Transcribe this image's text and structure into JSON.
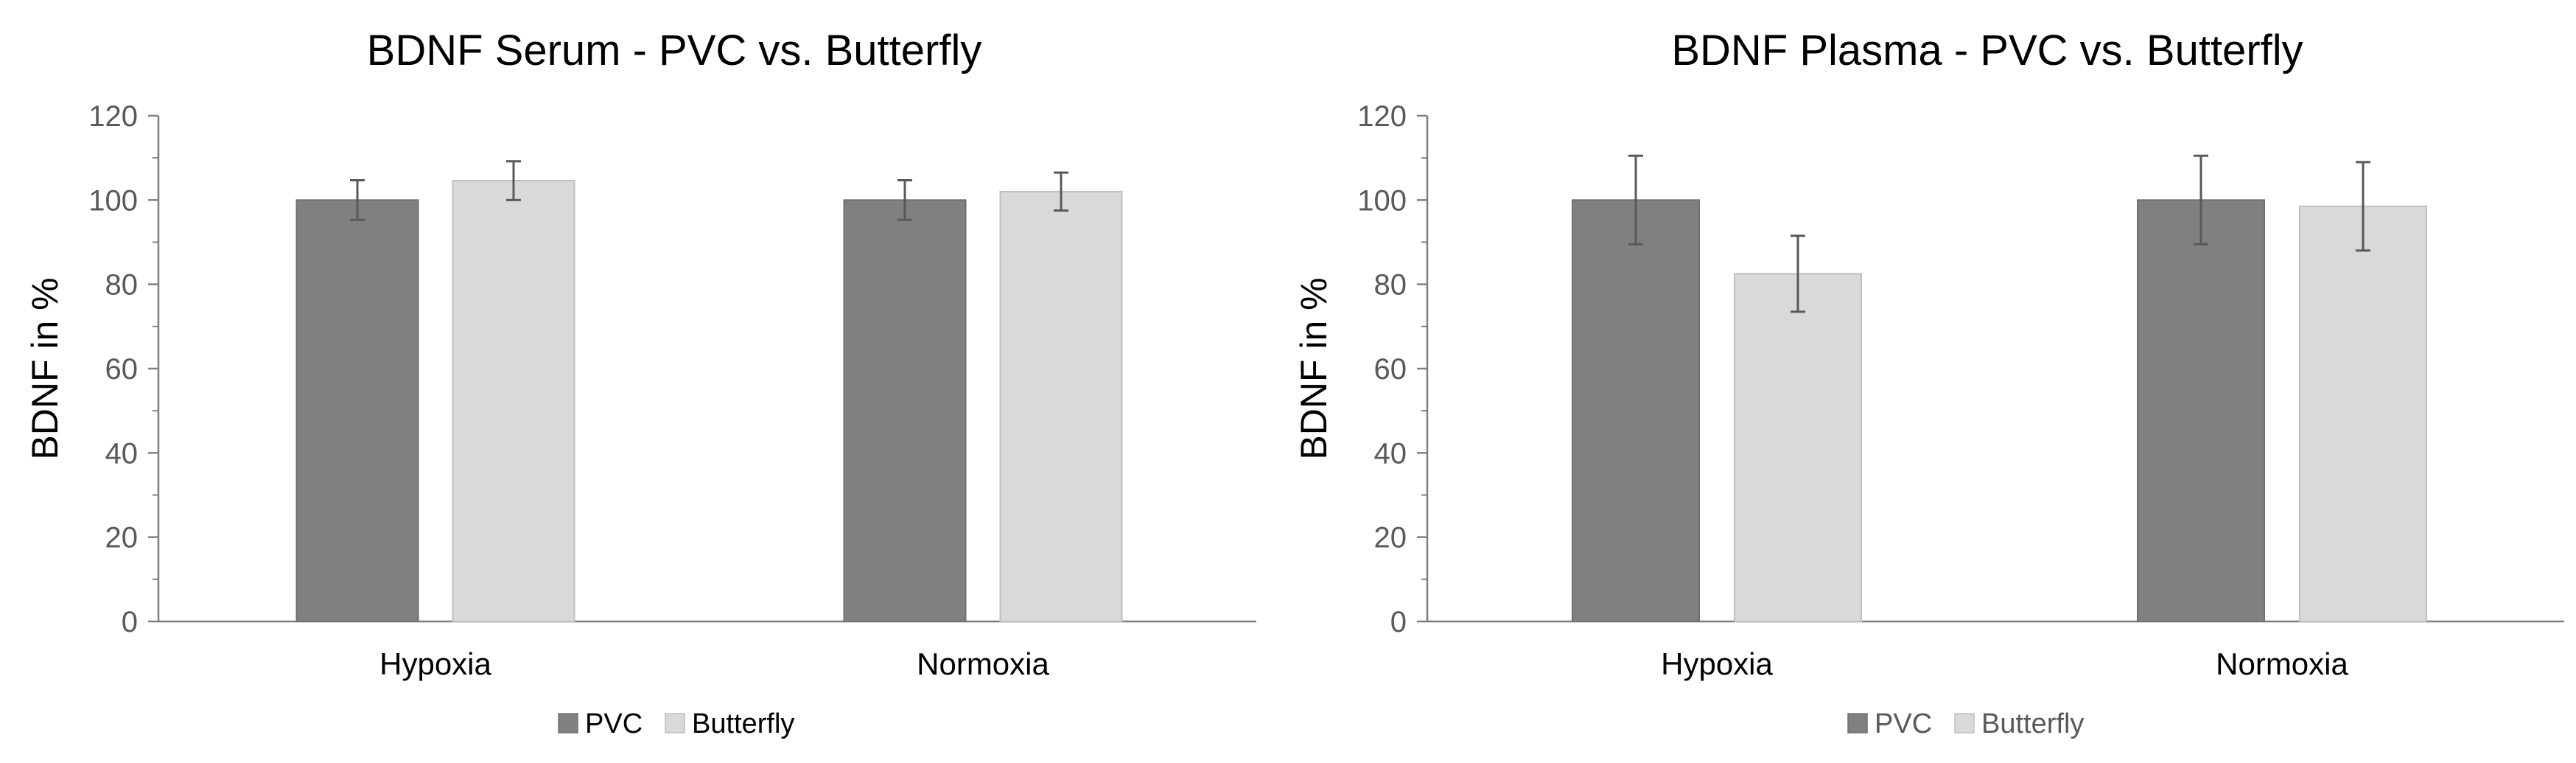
{
  "chart_data": [
    {
      "type": "bar",
      "title": "BDNF Serum - PVC vs. Butterfly",
      "ylabel": "BDNF in %",
      "xlabel": "",
      "ylim": [
        0,
        120
      ],
      "yticks": [
        0,
        20,
        40,
        60,
        80,
        100,
        120
      ],
      "categories": [
        "Hypoxia",
        "Normoxia"
      ],
      "series": [
        {
          "name": "PVC",
          "values": [
            100,
            100
          ],
          "errors": [
            4.7,
            4.7
          ],
          "color": "#808080"
        },
        {
          "name": "Butterfly",
          "values": [
            104.6,
            102
          ],
          "errors": [
            4.6,
            4.5
          ],
          "color": "#d9d9d9"
        }
      ],
      "legend": "bottom",
      "grid": false
    },
    {
      "type": "bar",
      "title": "BDNF Plasma - PVC vs. Butterfly",
      "ylabel": "BDNF in %",
      "xlabel": "",
      "ylim": [
        0,
        120
      ],
      "yticks": [
        0,
        20,
        40,
        60,
        80,
        100,
        120
      ],
      "categories": [
        "Hypoxia",
        "Normoxia"
      ],
      "series": [
        {
          "name": "PVC",
          "values": [
            100,
            100
          ],
          "errors": [
            10.5,
            10.5
          ],
          "color": "#808080"
        },
        {
          "name": "Butterfly",
          "values": [
            82.5,
            98.5
          ],
          "errors": [
            9,
            10.5
          ],
          "color": "#d9d9d9"
        }
      ],
      "legend": "bottom",
      "grid": false
    }
  ]
}
